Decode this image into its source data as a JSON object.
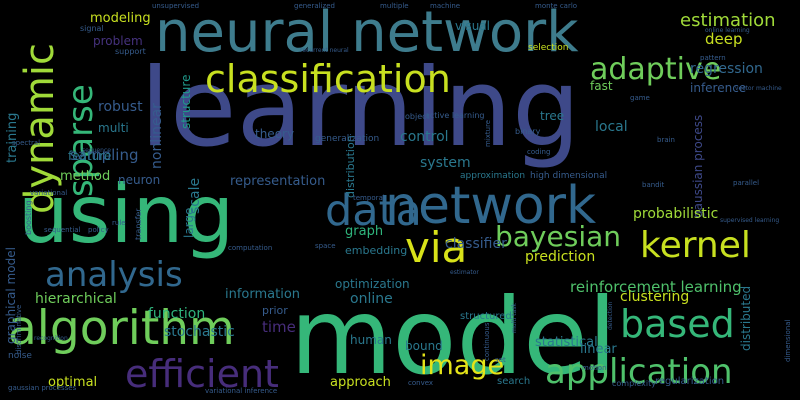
{
  "palette": {
    "teal": "#35b779",
    "mint": "#4fc16b",
    "yellow": "#c8e020",
    "lime": "#a0da39",
    "blue": "#31688e",
    "steel": "#3e4989",
    "indigo": "#46327e",
    "purple": "#472d7b",
    "cyan": "#21918c",
    "seafoam": "#2fb47c",
    "gray_blue": "#365c8d"
  },
  "words": [
    {
      "text": "learning",
      "color": "#3e4989"
    },
    {
      "text": "model",
      "color": "#35b779"
    },
    {
      "text": "using",
      "color": "#35b779"
    },
    {
      "text": "neural network",
      "color": "#3e7c8d"
    },
    {
      "text": "network",
      "color": "#31688e"
    },
    {
      "text": "data",
      "color": "#31688e"
    },
    {
      "text": "algorithm",
      "color": "#6fcd5b"
    },
    {
      "text": "classification",
      "color": "#c8e020"
    },
    {
      "text": "dynamic",
      "color": "#a0da39"
    },
    {
      "text": "sparse",
      "color": "#35b779"
    },
    {
      "text": "adaptive",
      "color": "#6fcd5b"
    },
    {
      "text": "via",
      "color": "#d8e219"
    },
    {
      "text": "bayesian",
      "color": "#6fcd5b"
    },
    {
      "text": "kernel",
      "color": "#c8e020"
    },
    {
      "text": "analysis",
      "color": "#31688e"
    },
    {
      "text": "based",
      "color": "#35b779"
    },
    {
      "text": "efficient",
      "color": "#472d7b"
    },
    {
      "text": "application",
      "color": "#4fc16b"
    },
    {
      "text": "image",
      "color": "#e5e419"
    },
    {
      "text": "estimation",
      "color": "#a0da39"
    },
    {
      "text": "deep",
      "color": "#c8e020"
    },
    {
      "text": "regression",
      "color": "#31688e"
    },
    {
      "text": "modeling",
      "color": "#c8e020"
    },
    {
      "text": "problem",
      "color": "#46327e"
    },
    {
      "text": "sampling",
      "color": "#365c8d"
    },
    {
      "text": "robust",
      "color": "#365c8d"
    },
    {
      "text": "multi",
      "color": "#2a788e"
    },
    {
      "text": "feature",
      "color": "#2a788e"
    },
    {
      "text": "method",
      "color": "#6fcd5b"
    },
    {
      "text": "neuron",
      "color": "#365c8d"
    },
    {
      "text": "training",
      "color": "#2a788e"
    },
    {
      "text": "nonlinear",
      "color": "#365c8d"
    },
    {
      "text": "structure",
      "color": "#1f998a"
    },
    {
      "text": "scale",
      "color": "#2a788e"
    },
    {
      "text": "large",
      "color": "#2a788e"
    },
    {
      "text": "representation",
      "color": "#365c8d"
    },
    {
      "text": "system",
      "color": "#2a788e"
    },
    {
      "text": "control",
      "color": "#2a788e"
    },
    {
      "text": "distribution",
      "color": "#2a788e"
    },
    {
      "text": "theory",
      "color": "#365c8d"
    },
    {
      "text": "visual",
      "color": "#2a788e"
    },
    {
      "text": "inference",
      "color": "#365c8d"
    },
    {
      "text": "fast",
      "color": "#6fcd5b"
    },
    {
      "text": "local",
      "color": "#2a788e"
    },
    {
      "text": "tree",
      "color": "#2a788e"
    },
    {
      "text": "gaussian process",
      "color": "#3e4989"
    },
    {
      "text": "probabilistic",
      "color": "#a0da39"
    },
    {
      "text": "graph",
      "color": "#2fb47c"
    },
    {
      "text": "embedding",
      "color": "#2a788e"
    },
    {
      "text": "hierarchical",
      "color": "#6fcd5b"
    },
    {
      "text": "function",
      "color": "#2fb47c"
    },
    {
      "text": "stochastic",
      "color": "#2a788e"
    },
    {
      "text": "time",
      "color": "#472d7b"
    },
    {
      "text": "information",
      "color": "#2a788e"
    },
    {
      "text": "optimization",
      "color": "#2a788e"
    },
    {
      "text": "online",
      "color": "#2a788e"
    },
    {
      "text": "classifier",
      "color": "#365c8d"
    },
    {
      "text": "prediction",
      "color": "#c8e020"
    },
    {
      "text": "reinforcement learning",
      "color": "#4fc16b"
    },
    {
      "text": "clustering",
      "color": "#c8e020"
    },
    {
      "text": "distributed",
      "color": "#2a788e"
    },
    {
      "text": "statistical",
      "color": "#2a788e"
    },
    {
      "text": "linear",
      "color": "#2a788e"
    },
    {
      "text": "human",
      "color": "#2a788e"
    },
    {
      "text": "bound",
      "color": "#2a788e"
    },
    {
      "text": "approach",
      "color": "#c8e020"
    },
    {
      "text": "optimal",
      "color": "#c8e020"
    },
    {
      "text": "graphical model",
      "color": "#365c8d"
    },
    {
      "text": "high dimensional",
      "color": "#365c8d"
    },
    {
      "text": "approximation",
      "color": "#2a788e"
    },
    {
      "text": "prior",
      "color": "#365c8d"
    },
    {
      "text": "structured",
      "color": "#2a788e"
    },
    {
      "text": "selection",
      "color": "#c8e020"
    },
    {
      "text": "generalization",
      "color": "#365c8d"
    },
    {
      "text": "active learning",
      "color": "#365c8d"
    },
    {
      "text": "signal",
      "color": "#365c8d"
    },
    {
      "text": "support",
      "color": "#365c8d"
    },
    {
      "text": "unsupervised",
      "color": "#365c8d"
    },
    {
      "text": "generalized",
      "color": "#365c8d"
    },
    {
      "text": "multiple",
      "color": "#365c8d"
    },
    {
      "text": "machine",
      "color": "#365c8d"
    },
    {
      "text": "monte carlo",
      "color": "#365c8d"
    },
    {
      "text": "online learning",
      "color": "#365c8d"
    },
    {
      "text": "recurrent neural",
      "color": "#365c8d"
    },
    {
      "text": "object",
      "color": "#365c8d"
    },
    {
      "text": "binary",
      "color": "#365c8d"
    },
    {
      "text": "mixture",
      "color": "#365c8d"
    },
    {
      "text": "coding",
      "color": "#365c8d"
    },
    {
      "text": "pattern",
      "color": "#365c8d"
    },
    {
      "text": "vector machine",
      "color": "#365c8d"
    },
    {
      "text": "spectral",
      "color": "#365c8d"
    },
    {
      "text": "sequence",
      "color": "#365c8d"
    },
    {
      "text": "variational",
      "color": "#365c8d"
    },
    {
      "text": "boosting",
      "color": "#365c8d"
    },
    {
      "text": "transfer",
      "color": "#365c8d"
    },
    {
      "text": "sequential",
      "color": "#365c8d"
    },
    {
      "text": "gaussian processes",
      "color": "#365c8d"
    },
    {
      "text": "variational inference",
      "color": "#365c8d"
    },
    {
      "text": "regularization",
      "color": "#365c8d"
    },
    {
      "text": "detection",
      "color": "#365c8d"
    },
    {
      "text": "motion",
      "color": "#365c8d"
    },
    {
      "text": "search",
      "color": "#2a788e"
    },
    {
      "text": "complexity",
      "color": "#365c8d"
    },
    {
      "text": "supervised learning",
      "color": "#365c8d"
    },
    {
      "text": "recognition",
      "color": "#365c8d"
    },
    {
      "text": "parallel",
      "color": "#365c8d"
    },
    {
      "text": "bandit",
      "color": "#365c8d"
    },
    {
      "text": "noise",
      "color": "#365c8d"
    },
    {
      "text": "rule",
      "color": "#365c8d"
    },
    {
      "text": "policy",
      "color": "#365c8d"
    },
    {
      "text": "set",
      "color": "#365c8d"
    },
    {
      "text": "dimensional",
      "color": "#365c8d"
    },
    {
      "text": "discriminative",
      "color": "#365c8d"
    },
    {
      "text": "continuous",
      "color": "#365c8d"
    },
    {
      "text": "convex",
      "color": "#365c8d"
    },
    {
      "text": "multi task",
      "color": "#365c8d"
    },
    {
      "text": "temporal",
      "color": "#365c8d"
    },
    {
      "text": "space",
      "color": "#365c8d"
    },
    {
      "text": "computation",
      "color": "#365c8d"
    },
    {
      "text": "estimator",
      "color": "#365c8d"
    },
    {
      "text": "brain",
      "color": "#365c8d"
    },
    {
      "text": "game",
      "color": "#365c8d"
    }
  ]
}
